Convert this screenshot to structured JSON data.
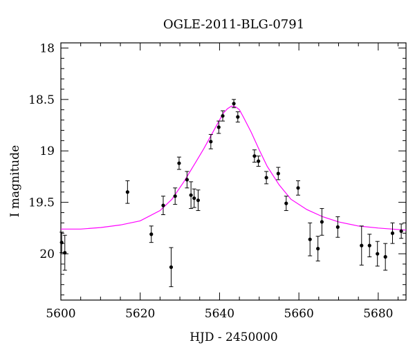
{
  "chart_data": {
    "type": "scatter",
    "title": "OGLE-2011-BLG-0791",
    "xlabel": "HJD - 2450000",
    "ylabel": "I magnitude",
    "xlim": [
      5600,
      5687
    ],
    "ylim": [
      17.95,
      20.45
    ],
    "y_inverted": true,
    "x_ticks": [
      5600,
      5620,
      5640,
      5660,
      5680
    ],
    "y_ticks": [
      18,
      18.5,
      19,
      19.5,
      20
    ],
    "x_tick_labels": [
      "5600",
      "5620",
      "5640",
      "5660",
      "5680"
    ],
    "y_tick_labels": [
      "18",
      "18.5",
      "19",
      "19.5",
      "20"
    ],
    "grid": false,
    "legend": "none",
    "colors": {
      "points": "#000000",
      "model": "#ff00ff",
      "axes": "#000000"
    },
    "series": [
      {
        "kind": "observations",
        "points": [
          {
            "x": 5600.2,
            "y": 19.89,
            "err": 0.1
          },
          {
            "x": 5601.0,
            "y": 19.99,
            "err": 0.17
          },
          {
            "x": 5616.8,
            "y": 19.4,
            "err": 0.11
          },
          {
            "x": 5622.8,
            "y": 19.81,
            "err": 0.08
          },
          {
            "x": 5625.8,
            "y": 19.53,
            "err": 0.09
          },
          {
            "x": 5627.8,
            "y": 20.13,
            "err": 0.19
          },
          {
            "x": 5628.8,
            "y": 19.44,
            "err": 0.08
          },
          {
            "x": 5629.8,
            "y": 19.12,
            "err": 0.06
          },
          {
            "x": 5631.8,
            "y": 19.28,
            "err": 0.08
          },
          {
            "x": 5632.8,
            "y": 19.43,
            "err": 0.13
          },
          {
            "x": 5633.6,
            "y": 19.46,
            "err": 0.09
          },
          {
            "x": 5634.6,
            "y": 19.48,
            "err": 0.1
          },
          {
            "x": 5637.8,
            "y": 18.91,
            "err": 0.07
          },
          {
            "x": 5639.8,
            "y": 18.77,
            "err": 0.06
          },
          {
            "x": 5640.8,
            "y": 18.66,
            "err": 0.05
          },
          {
            "x": 5643.6,
            "y": 18.54,
            "err": 0.04
          },
          {
            "x": 5644.6,
            "y": 18.67,
            "err": 0.05
          },
          {
            "x": 5648.8,
            "y": 19.05,
            "err": 0.06
          },
          {
            "x": 5649.8,
            "y": 19.1,
            "err": 0.05
          },
          {
            "x": 5651.8,
            "y": 19.26,
            "err": 0.06
          },
          {
            "x": 5654.8,
            "y": 19.22,
            "err": 0.06
          },
          {
            "x": 5656.8,
            "y": 19.51,
            "err": 0.07
          },
          {
            "x": 5659.8,
            "y": 19.36,
            "err": 0.07
          },
          {
            "x": 5662.8,
            "y": 19.86,
            "err": 0.16
          },
          {
            "x": 5664.8,
            "y": 19.95,
            "err": 0.12
          },
          {
            "x": 5665.8,
            "y": 19.69,
            "err": 0.13
          },
          {
            "x": 5669.8,
            "y": 19.74,
            "err": 0.1
          },
          {
            "x": 5675.8,
            "y": 19.92,
            "err": 0.19
          },
          {
            "x": 5677.8,
            "y": 19.92,
            "err": 0.11
          },
          {
            "x": 5679.8,
            "y": 20.0,
            "err": 0.12
          },
          {
            "x": 5681.8,
            "y": 20.03,
            "err": 0.13
          },
          {
            "x": 5683.6,
            "y": 19.8,
            "err": 0.1
          },
          {
            "x": 5685.8,
            "y": 19.78,
            "err": 0.07
          }
        ]
      },
      {
        "kind": "model",
        "x": [
          5600,
          5605,
          5610,
          5615,
          5620,
          5625,
          5628,
          5631,
          5634,
          5636,
          5638,
          5640,
          5641,
          5642,
          5643,
          5644,
          5645,
          5646,
          5648,
          5650,
          5652,
          5655,
          5658,
          5662,
          5666,
          5670,
          5675,
          5680,
          5687
        ],
        "y": [
          19.76,
          19.76,
          19.745,
          19.72,
          19.68,
          19.58,
          19.47,
          19.3,
          19.11,
          18.98,
          18.84,
          18.7,
          18.63,
          18.59,
          18.565,
          18.57,
          18.6,
          18.67,
          18.82,
          18.99,
          19.15,
          19.33,
          19.47,
          19.57,
          19.64,
          19.69,
          19.73,
          19.75,
          19.77
        ]
      }
    ]
  }
}
